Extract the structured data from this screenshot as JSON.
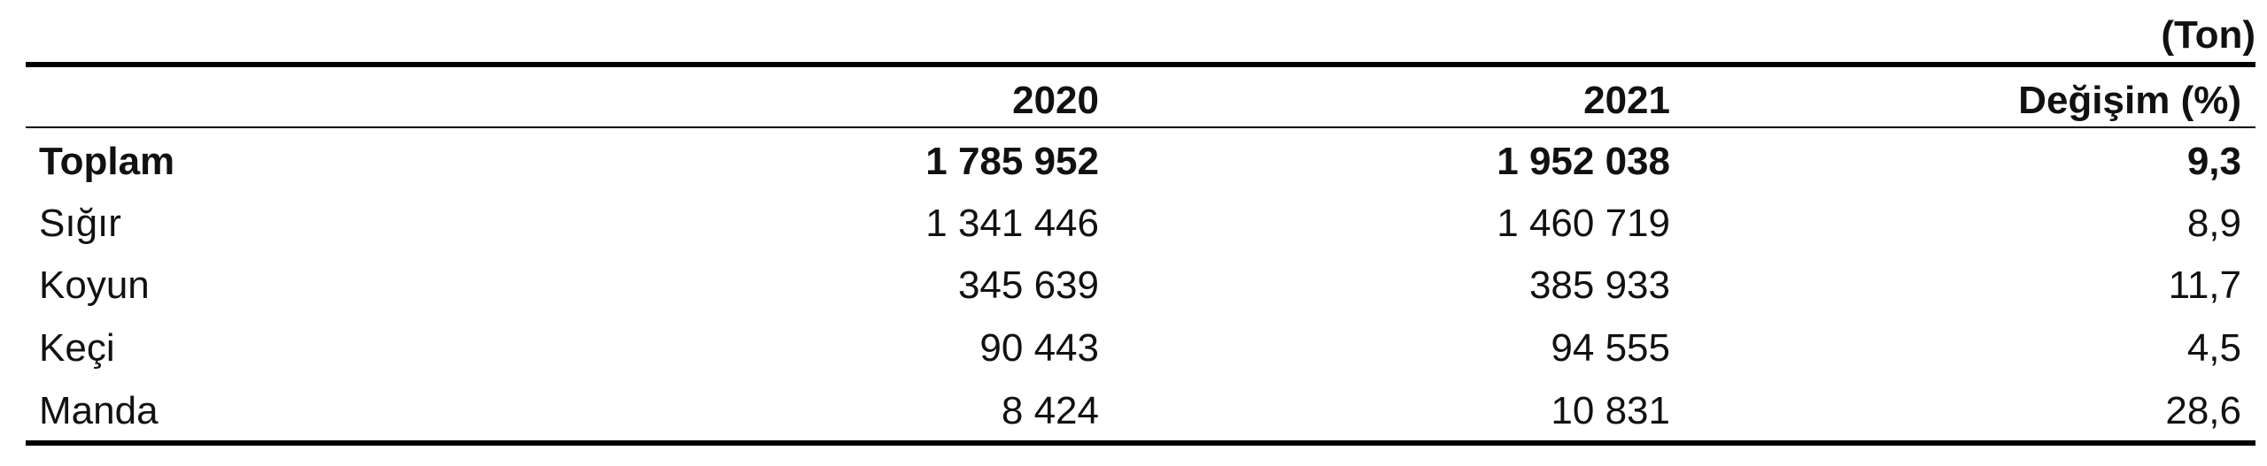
{
  "unit": "(Ton)",
  "table": {
    "header": [
      "",
      "2020",
      "2021",
      "Değişim (%)"
    ],
    "rows": [
      [
        "Toplam",
        "1 785 952",
        "1 952 038",
        "9,3"
      ],
      [
        "Sığır",
        "1 341 446",
        "1 460 719",
        "8,9"
      ],
      [
        "Koyun",
        "345 639",
        "385 933",
        "11,7"
      ],
      [
        "Keçi",
        "90 443",
        "94 555",
        "4,5"
      ],
      [
        "Manda",
        "8 424",
        "10 831",
        "28,6"
      ]
    ]
  }
}
